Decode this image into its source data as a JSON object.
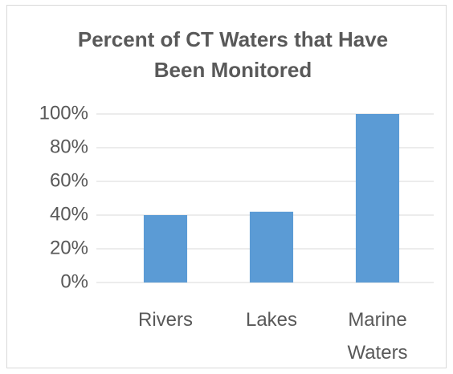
{
  "chart_data": {
    "type": "bar",
    "title": "Percent of CT Waters that Have Been Monitored",
    "categories": [
      "Rivers",
      "Lakes",
      "Marine Waters"
    ],
    "values": [
      40,
      42,
      100
    ],
    "color": "#5b9bd5",
    "ylim": [
      0,
      100
    ],
    "yticks": [
      {
        "value": 0,
        "label": "0%"
      },
      {
        "value": 20,
        "label": "20%"
      },
      {
        "value": 40,
        "label": "40%"
      },
      {
        "value": 60,
        "label": "60%"
      },
      {
        "value": 80,
        "label": "80%"
      },
      {
        "value": 100,
        "label": "100%"
      }
    ],
    "grid": true
  }
}
